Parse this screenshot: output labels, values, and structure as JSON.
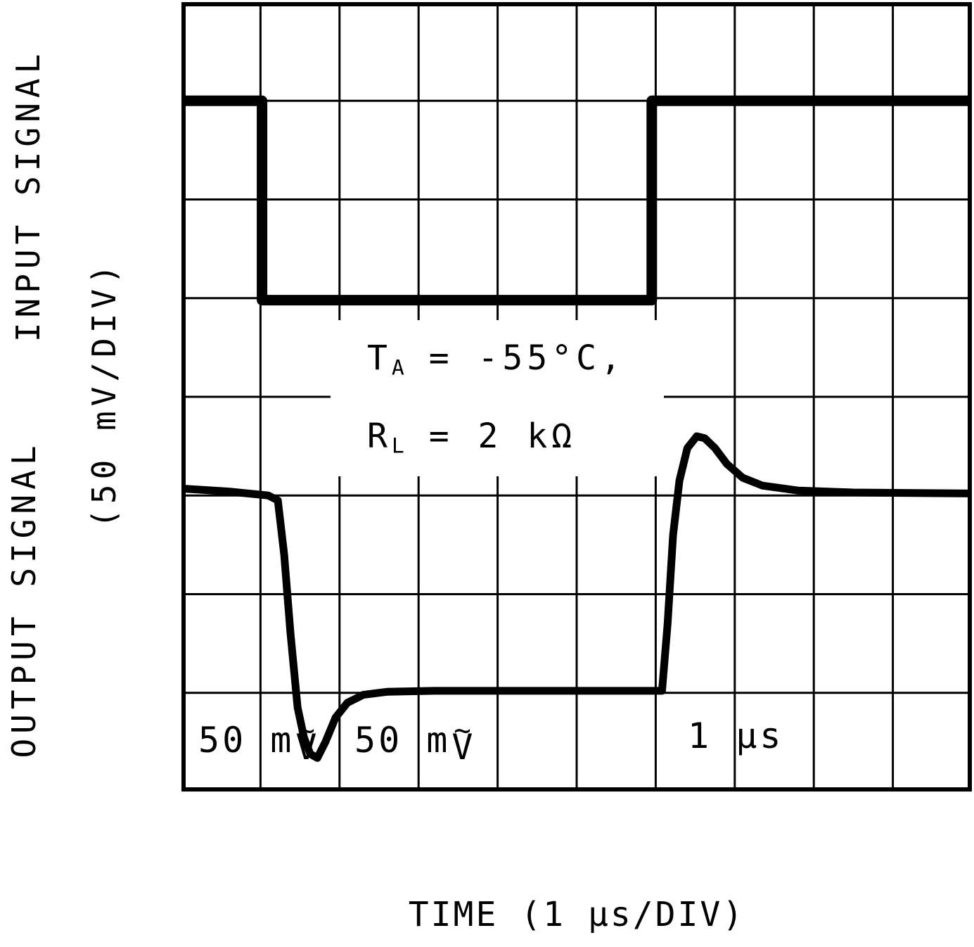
{
  "figure": {
    "labels": {
      "input_signal": "INPUT SIGNAL",
      "output_signal": "OUTPUT SIGNAL",
      "y_scale": "(50 mV/DIV)",
      "time": "TIME (1 μs/DIV)"
    }
  },
  "conditions": {
    "line1": {
      "sym": "T",
      "sub": "A",
      "value": " =  -55°C,"
    },
    "line2": {
      "sym": "R",
      "sub": "L",
      "value": " =  2 kΩ"
    }
  },
  "scale_markers": [
    {
      "text": "50 m",
      "tilde": "~",
      "unit": "V"
    },
    {
      "text": "50 m",
      "tilde": "~",
      "unit": "V"
    },
    {
      "text": "1 μs"
    }
  ],
  "chart_data": {
    "type": "line",
    "xlabel": "TIME (1 μs/DIV)",
    "ylabel_top": "INPUT SIGNAL",
    "ylabel_bottom": "OUTPUT SIGNAL",
    "y_scale_label": "(50 mV/DIV)",
    "x_divisions": 10,
    "y_divisions": 8,
    "x_unit_per_div": "1 μs",
    "y_unit_per_div": "50 mV",
    "grid": true,
    "annotations": [
      "TA = -55°C,",
      "RL = 2 kΩ",
      "50 mV",
      "50 mV",
      "1 μs"
    ],
    "coordinate_note": "x in grid divisions (1 μs each); y in grid divisions from top (50 mV each)",
    "series": [
      {
        "name": "INPUT SIGNAL",
        "stroke_px": 15,
        "points": [
          [
            0,
            1.0
          ],
          [
            1.02,
            1.0
          ],
          [
            1.02,
            3.02
          ],
          [
            5.95,
            3.02
          ],
          [
            5.95,
            1.0
          ],
          [
            10,
            1.0
          ]
        ]
      },
      {
        "name": "OUTPUT SIGNAL",
        "stroke_px": 11,
        "points": [
          [
            0,
            4.93
          ],
          [
            0.6,
            4.96
          ],
          [
            1.1,
            5.0
          ],
          [
            1.22,
            5.05
          ],
          [
            1.3,
            5.6
          ],
          [
            1.38,
            6.4
          ],
          [
            1.47,
            7.15
          ],
          [
            1.55,
            7.45
          ],
          [
            1.63,
            7.62
          ],
          [
            1.72,
            7.66
          ],
          [
            1.82,
            7.5
          ],
          [
            1.95,
            7.25
          ],
          [
            2.1,
            7.1
          ],
          [
            2.3,
            7.02
          ],
          [
            2.6,
            6.99
          ],
          [
            3.2,
            6.98
          ],
          [
            4.5,
            6.98
          ],
          [
            5.5,
            6.98
          ],
          [
            6.08,
            6.98
          ],
          [
            6.15,
            6.3
          ],
          [
            6.22,
            5.4
          ],
          [
            6.3,
            4.85
          ],
          [
            6.4,
            4.52
          ],
          [
            6.52,
            4.4
          ],
          [
            6.62,
            4.42
          ],
          [
            6.75,
            4.52
          ],
          [
            6.9,
            4.68
          ],
          [
            7.1,
            4.82
          ],
          [
            7.35,
            4.9
          ],
          [
            7.8,
            4.95
          ],
          [
            8.5,
            4.97
          ],
          [
            10,
            4.98
          ]
        ]
      }
    ]
  }
}
